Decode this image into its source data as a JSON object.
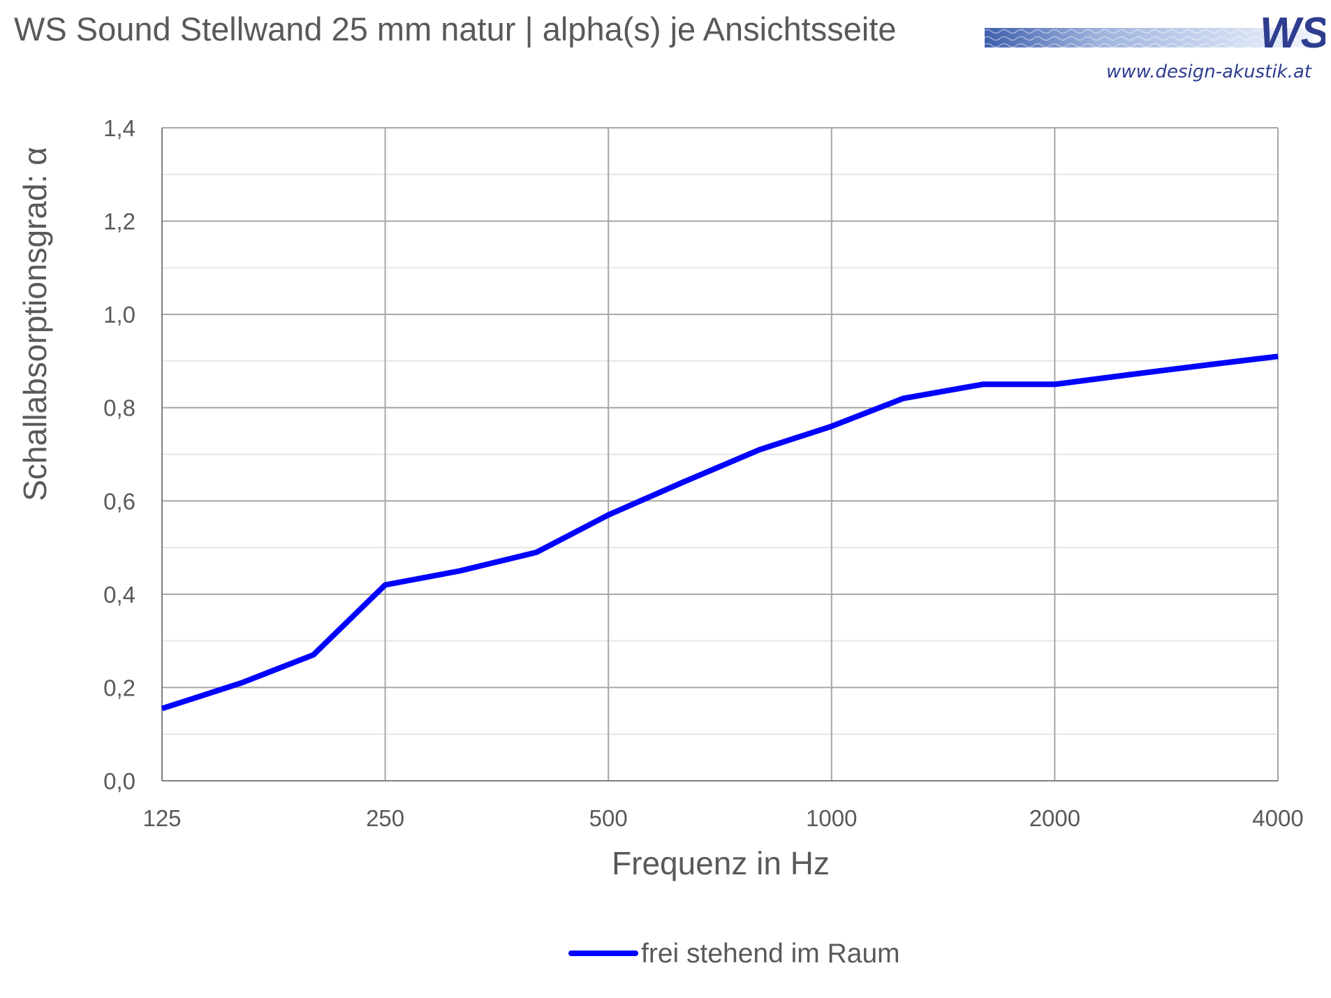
{
  "header": {
    "title": "WS Sound Stellwand 25 mm natur | alpha(s) je Ansichtsseite",
    "logo_text": "WS",
    "logo_url": "www.design-akustik.at"
  },
  "colors": {
    "series_line": "#0000ff",
    "grid_major": "#a6a6a6",
    "grid_minor": "#e6e6e6",
    "logo_blue": "#2f3d8f"
  },
  "chart_data": {
    "type": "line",
    "xlabel": "Frequenz in Hz",
    "ylabel": "Schallabsorptionsgrad: α",
    "xscale": "log2",
    "xlim": [
      125,
      4000
    ],
    "ylim": [
      0,
      1.4
    ],
    "grid": true,
    "legend_position": "bottom-center",
    "x_ticks": [
      125,
      250,
      500,
      1000,
      2000,
      4000
    ],
    "x_tick_labels": [
      "125",
      "250",
      "500",
      "1000",
      "2000",
      "4000"
    ],
    "y_ticks": [
      0,
      0.2,
      0.4,
      0.6,
      0.8,
      1.0,
      1.2,
      1.4
    ],
    "y_tick_labels": [
      "0,0",
      "0,2",
      "0,4",
      "0,6",
      "0,8",
      "1,0",
      "1,2",
      "1,4"
    ],
    "series": [
      {
        "name": "frei stehend im Raum",
        "x": [
          125,
          160,
          200,
          250,
          315,
          400,
          500,
          630,
          800,
          1000,
          1250,
          1600,
          2000,
          2500,
          3150,
          4000
        ],
        "y": [
          0.155,
          0.21,
          0.27,
          0.42,
          0.45,
          0.49,
          0.57,
          0.64,
          0.71,
          0.76,
          0.82,
          0.85,
          0.85,
          0.87,
          0.89,
          0.91
        ]
      }
    ]
  }
}
